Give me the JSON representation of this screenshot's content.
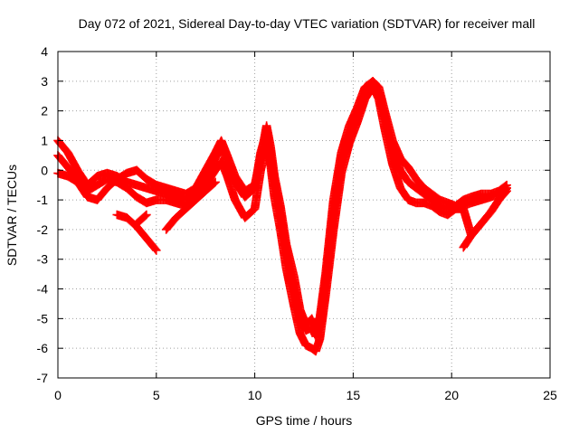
{
  "chart_data": {
    "type": "scatter",
    "title": "Day 072 of 2021, Sidereal Day-to-day VTEC variation (SDTVAR) for receiver mall",
    "xlabel": "GPS time / hours",
    "ylabel": "SDTVAR / TECUs",
    "xlim": [
      0,
      25
    ],
    "ylim": [
      -7,
      4
    ],
    "xticks": [
      0,
      5,
      10,
      15,
      20,
      25
    ],
    "yticks": [
      -7,
      -6,
      -5,
      -4,
      -3,
      -2,
      -1,
      0,
      1,
      2,
      3,
      4
    ],
    "grid": true,
    "marker": "plus",
    "color": "#ff0000",
    "series": [
      {
        "x": [
          0.0,
          0.5,
          1.0,
          1.5,
          2.0,
          2.5,
          3.0,
          3.5,
          4.0,
          4.5,
          5.0,
          5.5,
          6.0,
          6.5,
          7.0,
          7.5,
          8.0,
          8.3,
          8.6,
          9.0,
          9.5,
          10.0,
          10.3,
          10.6,
          10.8,
          11.0,
          11.3,
          11.6,
          12.0,
          12.3,
          12.6,
          12.9,
          13.1,
          13.3,
          13.6,
          14.0,
          14.4,
          14.8,
          15.2,
          15.6,
          16.0,
          16.3,
          16.6,
          17.0,
          17.4,
          17.8,
          18.2,
          18.6,
          19.0,
          19.4,
          19.8,
          20.2,
          20.6,
          21.0,
          21.5,
          22.0,
          22.4,
          22.8
        ],
        "y": [
          1.0,
          0.6,
          0.0,
          -0.5,
          -0.2,
          -0.1,
          -0.2,
          -0.4,
          -0.5,
          -0.6,
          -0.7,
          -0.8,
          -0.9,
          -1.0,
          -0.8,
          -0.2,
          0.4,
          0.8,
          0.3,
          -0.4,
          -0.9,
          -0.6,
          0.6,
          1.3,
          0.5,
          -0.4,
          -1.5,
          -2.8,
          -4.0,
          -5.0,
          -5.4,
          -5.3,
          -5.6,
          -5.3,
          -3.8,
          -1.5,
          0.3,
          1.2,
          1.8,
          2.6,
          3.0,
          2.6,
          1.8,
          0.6,
          0.0,
          -0.4,
          -0.6,
          -0.8,
          -1.0,
          -1.2,
          -1.3,
          -1.3,
          -1.2,
          -1.1,
          -1.0,
          -0.9,
          -0.8,
          -0.6
        ]
      },
      {
        "x": [
          0.0,
          0.5,
          1.0,
          1.5,
          2.0,
          2.5,
          3.0,
          3.5,
          4.0,
          4.5,
          5.0,
          5.5,
          6.0,
          6.5,
          7.0,
          7.5,
          8.0,
          8.3,
          8.6,
          9.0,
          9.5,
          10.0,
          10.3,
          10.6,
          10.8,
          11.0,
          11.3,
          11.6,
          12.0,
          12.3,
          12.6,
          12.9,
          13.1,
          13.3,
          13.6,
          14.0,
          14.4,
          14.8,
          15.2,
          15.6,
          16.0,
          16.3,
          16.6,
          17.0,
          17.4,
          17.8,
          18.2,
          18.6,
          19.0,
          19.4,
          19.8,
          20.2,
          20.6,
          21.0,
          21.5,
          22.0,
          22.4,
          22.8
        ],
        "y": [
          0.5,
          0.1,
          -0.3,
          -0.7,
          -0.5,
          -0.3,
          -0.4,
          -0.6,
          -0.9,
          -1.1,
          -1.0,
          -1.0,
          -1.1,
          -1.2,
          -1.0,
          -0.5,
          0.0,
          0.3,
          -0.2,
          -1.0,
          -1.6,
          -1.3,
          0.0,
          0.8,
          0.2,
          -0.9,
          -2.0,
          -3.3,
          -4.6,
          -5.5,
          -5.9,
          -6.0,
          -6.1,
          -5.7,
          -4.2,
          -2.0,
          -0.1,
          0.9,
          1.6,
          2.4,
          2.8,
          2.4,
          1.4,
          0.2,
          -0.6,
          -1.0,
          -1.1,
          -1.1,
          -1.2,
          -1.4,
          -1.5,
          -1.3,
          -1.3,
          -2.2,
          -1.8,
          -1.4,
          -1.0,
          -0.7
        ]
      },
      {
        "x": [
          0.0,
          0.5,
          1.0,
          1.5,
          2.0,
          2.5,
          3.0,
          3.5,
          4.0,
          4.5,
          5.0,
          5.5,
          6.0,
          6.5,
          7.0,
          7.5,
          8.0,
          8.3,
          8.6,
          9.0,
          9.5,
          10.0,
          10.3,
          10.6,
          10.8,
          11.0,
          11.3,
          11.6,
          12.0,
          12.3,
          12.6,
          12.9,
          13.1,
          13.3,
          13.6,
          14.0,
          14.4,
          14.8,
          15.2,
          15.6,
          16.0,
          16.3,
          16.6,
          17.0,
          17.4,
          17.8,
          18.2,
          18.6,
          19.0,
          19.4,
          19.8,
          20.2,
          20.6,
          21.0,
          21.5,
          22.0,
          22.4,
          22.8
        ],
        "y": [
          -0.1,
          -0.2,
          -0.4,
          -0.9,
          -1.0,
          -0.6,
          -0.3,
          -0.1,
          0.0,
          -0.3,
          -0.5,
          -0.6,
          -0.7,
          -0.8,
          -0.6,
          0.0,
          0.6,
          1.0,
          0.5,
          -0.2,
          -0.7,
          -0.5,
          0.4,
          1.5,
          0.8,
          -0.2,
          -1.2,
          -2.5,
          -3.6,
          -4.7,
          -5.2,
          -5.0,
          -5.3,
          -5.0,
          -3.5,
          -1.0,
          0.6,
          1.5,
          2.1,
          2.8,
          3.0,
          2.8,
          2.0,
          1.0,
          0.4,
          0.1,
          -0.3,
          -0.6,
          -0.8,
          -1.0,
          -1.1,
          -1.2,
          -1.0,
          -0.9,
          -0.8,
          -0.8,
          -0.7,
          -0.5
        ]
      },
      {
        "x": [
          3.0,
          3.5,
          4.0,
          4.5,
          5.0
        ],
        "y": [
          -1.5,
          -1.6,
          -1.9,
          -2.3,
          -2.7
        ]
      },
      {
        "x": [
          4.0,
          4.5
        ],
        "y": [
          -1.8,
          -1.5
        ]
      },
      {
        "x": [
          5.5,
          6.0,
          6.5,
          7.0,
          7.5,
          8.0
        ],
        "y": [
          -2.0,
          -1.6,
          -1.3,
          -1.0,
          -0.7,
          -0.4
        ]
      },
      {
        "x": [
          20.6,
          21.0,
          21.5,
          22.0,
          22.4,
          22.8
        ],
        "y": [
          -2.6,
          -2.2,
          -1.8,
          -1.4,
          -1.0,
          -0.6
        ]
      }
    ]
  }
}
